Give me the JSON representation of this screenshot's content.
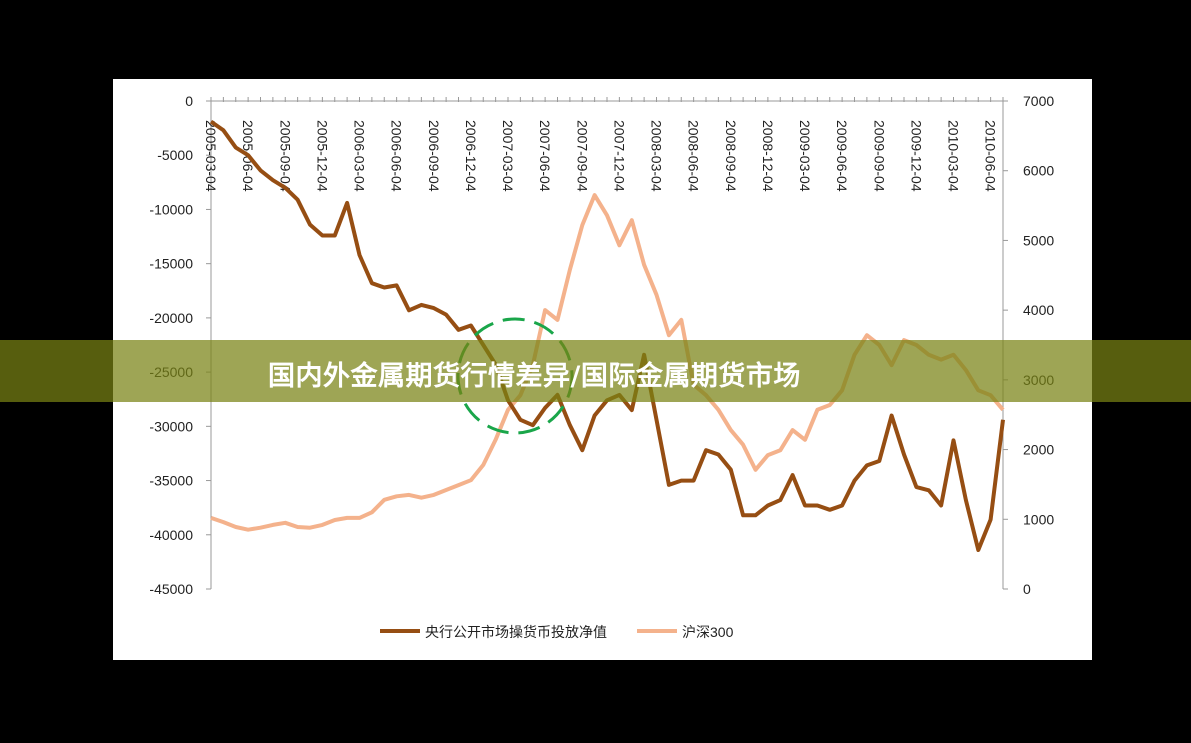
{
  "banner": {
    "title": "国内外金属期货行情差异/国际金属期货市场"
  },
  "chart_data": {
    "type": "line",
    "categories": [
      "2005-03-04",
      null,
      null,
      "2005-06-04",
      null,
      null,
      "2005-09-04",
      null,
      null,
      "2005-12-04",
      null,
      null,
      "2006-03-04",
      null,
      null,
      "2006-06-04",
      null,
      null,
      "2006-09-04",
      null,
      null,
      "2006-12-04",
      null,
      null,
      "2007-03-04",
      null,
      null,
      "2007-06-04",
      null,
      null,
      "2007-09-04",
      null,
      null,
      "2007-12-04",
      null,
      null,
      "2008-03-04",
      null,
      null,
      "2008-06-04",
      null,
      null,
      "2008-09-04",
      null,
      null,
      "2008-12-04",
      null,
      null,
      "2009-03-04",
      null,
      null,
      "2009-06-04",
      null,
      null,
      "2009-09-04",
      null,
      null,
      "2009-12-04",
      null,
      null,
      "2010-03-04",
      null,
      null,
      "2010-06-04",
      null
    ],
    "series": [
      {
        "name": "央行公开市场操货币投放净值",
        "color": "#964e13",
        "axis": "y",
        "values": [
          -1900,
          -2700,
          -4300,
          -5000,
          -6400,
          -7300,
          -8000,
          -9100,
          -11400,
          -12400,
          -12400,
          -9400,
          -14200,
          -16800,
          -17200,
          -17000,
          -19300,
          -18800,
          -19100,
          -19700,
          -21100,
          -20700,
          -22500,
          -24300,
          -27600,
          -29400,
          -29900,
          -28300,
          -27100,
          -29900,
          -32200,
          -29000,
          -27600,
          -27100,
          -28500,
          -23400,
          -29400,
          -35400,
          -35000,
          -35000,
          -32200,
          -32600,
          -34000,
          -38200,
          -38200,
          -37300,
          -36800,
          -34500,
          -37300,
          -37300,
          -37700,
          -37300,
          -35000,
          -33600,
          -33200,
          -29000,
          -32600,
          -35600,
          -35900,
          -37300,
          -31300,
          -36800,
          -41400,
          -38600,
          -29400
        ]
      },
      {
        "name": "沪深300",
        "color": "#f4b28c",
        "axis": "y2",
        "values": [
          1020,
          960,
          890,
          850,
          880,
          920,
          950,
          890,
          880,
          920,
          990,
          1020,
          1020,
          1100,
          1280,
          1330,
          1350,
          1310,
          1350,
          1420,
          1490,
          1560,
          1780,
          2140,
          2570,
          2780,
          3210,
          4000,
          3860,
          4580,
          5220,
          5650,
          5360,
          4930,
          5290,
          4650,
          4220,
          3640,
          3860,
          2930,
          2780,
          2570,
          2280,
          2070,
          1710,
          1920,
          1990,
          2280,
          2140,
          2570,
          2640,
          2850,
          3360,
          3640,
          3500,
          3210,
          3570,
          3500,
          3360,
          3290,
          3360,
          3140,
          2850,
          2780,
          2570
        ]
      }
    ],
    "ylim": [
      -45000,
      0
    ],
    "yticks": [
      0,
      -5000,
      -10000,
      -15000,
      -20000,
      -25000,
      -30000,
      -35000,
      -40000,
      -45000
    ],
    "y2lim": [
      0,
      7000
    ],
    "y2ticks": [
      0,
      1000,
      2000,
      3000,
      4000,
      5000,
      6000,
      7000
    ],
    "legend": "bottom"
  }
}
